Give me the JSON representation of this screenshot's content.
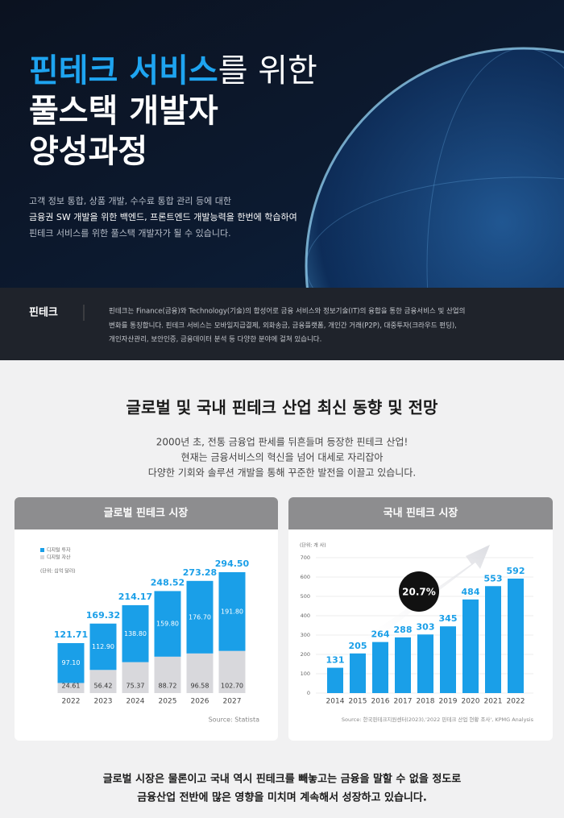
{
  "hero": {
    "title_highlight": "핀테크 서비스",
    "title_rest": "를 위한",
    "title_line2": "풀스택 개발자",
    "title_line3": "양성과정",
    "desc": [
      "고객 정보 통합, 상품 개발, 수수료 통합 관리 등에 대한",
      "금융권 SW 개발을 위한 백엔드, 프론트엔드 개발능력을 한번에 학습하여",
      "핀테크 서비스를 위한 풀스택 개발자가 될 수 있습니다."
    ]
  },
  "definition": {
    "term": "핀테크",
    "text": [
      "핀테크는 Finance(금융)와 Technology(기술)의 합성어로 금융 서비스와 정보기술(IT)의 융합을 통한 금융서비스 및 산업의",
      "변화를 통칭합니다. 핀테크 서비스는 모바일지급결제, 외화송금, 금융플랫폼, 개인간 거래(P2P), 대중투자(크라우드 펀딩),",
      "개인자산관리, 보안인증, 금융데이터 분석 등 다양한 분야에 걸쳐 있습니다."
    ]
  },
  "section": {
    "title": "글로벌 및 국내 핀테크 산업 최신 동향 및 전망",
    "intro": [
      "2000년 초, 전통 금융업 판세를 뒤흔들며 등장한 핀테크 산업!",
      "현재는 금융서비스의 혁신을 넘어 대세로 자리잡아",
      "다양한 기회와 솔루션 개발을 통해 꾸준한 발전을 이끌고 있습니다."
    ]
  },
  "chart_data": [
    {
      "type": "stacked-bar",
      "title": "글로벌 핀테크 시장",
      "unit": "(단위: 십억 달러)",
      "source": "Source: Statista",
      "categories": [
        "2022",
        "2023",
        "2024",
        "2025",
        "2026",
        "2027"
      ],
      "series": [
        {
          "name": "디지털 투자",
          "color": "#1a9fe8",
          "values": [
            97.1,
            112.9,
            138.8,
            159.8,
            176.7,
            191.8
          ],
          "value_labels": [
            "97.10",
            "112.90",
            "138.80",
            "159.80",
            "176.70",
            "191.80"
          ]
        },
        {
          "name": "디지털 자산",
          "color": "#d8d8dc",
          "values": [
            24.61,
            56.42,
            75.37,
            88.72,
            96.58,
            102.7
          ],
          "value_labels": [
            "24.61",
            "56.42",
            "75.37",
            "88.72",
            "96.58",
            "102.70"
          ]
        }
      ],
      "total_labels": [
        "121.71",
        "169.32",
        "214.17",
        "248.52",
        "273.28",
        "294.50"
      ]
    },
    {
      "type": "bar",
      "title": "국내 핀테크 시장",
      "unit": "(단위: 개 사)",
      "annotation": "20.7%",
      "source": "Source: 한국핀테크지원센터(2023),'2022 핀테크 산업 현황 조사', KPMG Analysis",
      "categories": [
        "2014",
        "2015",
        "2016",
        "2017",
        "2018",
        "2019",
        "2020",
        "2021",
        "2022"
      ],
      "values": [
        131,
        205,
        264,
        288,
        303,
        345,
        484,
        553,
        592
      ],
      "color": "#1a9fe8",
      "ylim": [
        0,
        700
      ],
      "yticks": [
        0,
        100,
        200,
        300,
        400,
        500,
        600,
        700
      ],
      "grid": true
    }
  ],
  "conclusion": [
    "글로벌 시장은 물론이고 국내 역시 핀테크를 빼놓고는 금융을 말할 수 없을 정도로",
    "금융산업 전반에 많은 영향을 미치며 계속해서 성장하고 있습니다."
  ]
}
